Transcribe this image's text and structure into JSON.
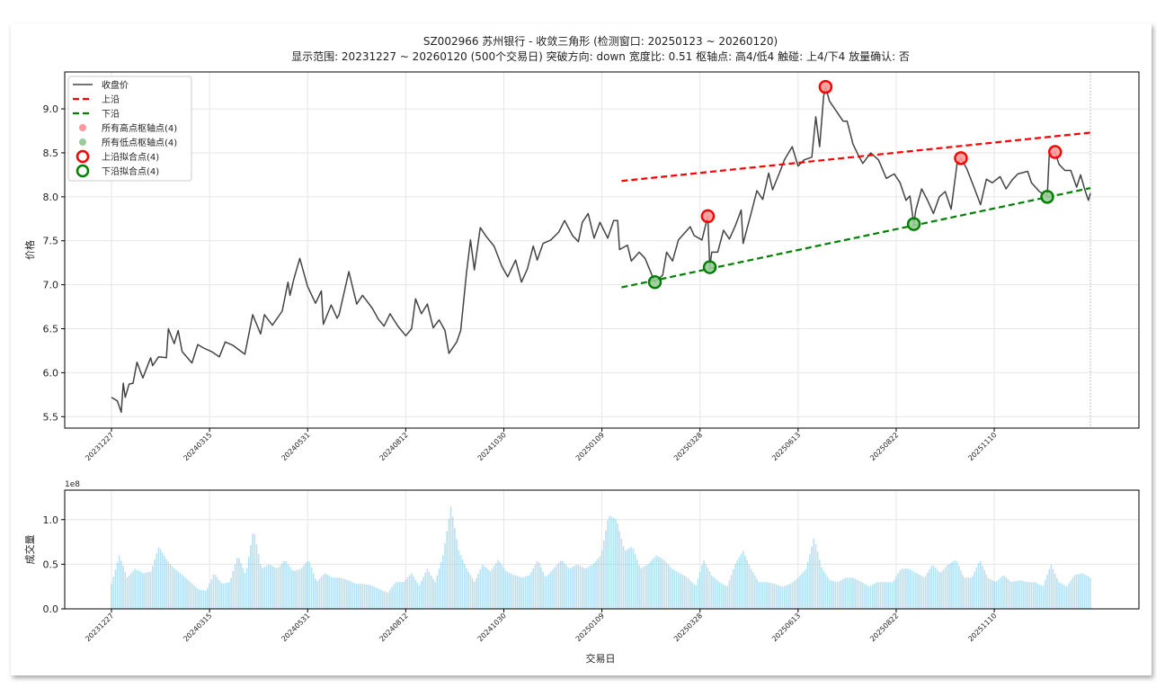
{
  "figure": {
    "title_line1": "SZ002966 苏州银行 - 收敛三角形 (检测窗口: 20250123 ~ 20260120)",
    "title_line2": "显示范围: 20231227 ~ 20260120 (500个交易日)  突破方向: down  宽度比: 0.51  枢轴点: 高4/低4  触碰: 上4/下4  放量确认: 否"
  },
  "chart_data": [
    {
      "type": "line",
      "ylabel": "价格",
      "xlabel": "",
      "ylim": [
        5.37,
        9.42
      ],
      "yticks": [
        "5.5",
        "6.0",
        "6.5",
        "7.0",
        "7.5",
        "8.0",
        "8.5",
        "9.0"
      ],
      "xtick_labels": [
        "20231227",
        "20240315",
        "20240531",
        "20240812",
        "20241030",
        "20250109",
        "20250328",
        "20250613",
        "20250822",
        "20251110"
      ],
      "trading_days": 500,
      "grid": true,
      "legend_position": "upper-left",
      "legend": [
        "收盘价",
        "上沿",
        "下沿",
        "所有高点枢轴点(4)",
        "所有低点枢轴点(4)",
        "上沿拟合点(4)",
        "下沿拟合点(4)"
      ],
      "colors": {
        "close": "#444444",
        "upper": "#ff0000",
        "lower": "#008000",
        "high_pivot": "#ff9999",
        "low_pivot": "#99cc99"
      },
      "close_points": [
        [
          0,
          5.72
        ],
        [
          3,
          5.68
        ],
        [
          5,
          5.55
        ],
        [
          6,
          5.88
        ],
        [
          7,
          5.72
        ],
        [
          9,
          5.87
        ],
        [
          11,
          5.88
        ],
        [
          13,
          6.12
        ],
        [
          16,
          5.94
        ],
        [
          20,
          6.17
        ],
        [
          21,
          6.08
        ],
        [
          24,
          6.18
        ],
        [
          28,
          6.17
        ],
        [
          29,
          6.5
        ],
        [
          32,
          6.33
        ],
        [
          34,
          6.48
        ],
        [
          36,
          6.24
        ],
        [
          41,
          6.11
        ],
        [
          44,
          6.32
        ],
        [
          47,
          6.28
        ],
        [
          51,
          6.24
        ],
        [
          55,
          6.18
        ],
        [
          58,
          6.35
        ],
        [
          62,
          6.31
        ],
        [
          68,
          6.21
        ],
        [
          72,
          6.66
        ],
        [
          76,
          6.44
        ],
        [
          78,
          6.66
        ],
        [
          82,
          6.54
        ],
        [
          87,
          6.7
        ],
        [
          90,
          7.03
        ],
        [
          91,
          6.88
        ],
        [
          93,
          7.07
        ],
        [
          96,
          7.3
        ],
        [
          100,
          6.98
        ],
        [
          104,
          6.79
        ],
        [
          107,
          6.93
        ],
        [
          108,
          6.55
        ],
        [
          112,
          6.77
        ],
        [
          115,
          6.62
        ],
        [
          116,
          6.66
        ],
        [
          121,
          7.15
        ],
        [
          125,
          6.78
        ],
        [
          128,
          6.88
        ],
        [
          130,
          6.82
        ],
        [
          133,
          6.73
        ],
        [
          136,
          6.61
        ],
        [
          139,
          6.53
        ],
        [
          142,
          6.67
        ],
        [
          146,
          6.53
        ],
        [
          150,
          6.42
        ],
        [
          153,
          6.5
        ],
        [
          155,
          6.84
        ],
        [
          158,
          6.67
        ],
        [
          161,
          6.78
        ],
        [
          164,
          6.51
        ],
        [
          167,
          6.6
        ],
        [
          170,
          6.48
        ],
        [
          172,
          6.22
        ],
        [
          176,
          6.35
        ],
        [
          178,
          6.48
        ],
        [
          181,
          7.14
        ],
        [
          183,
          7.51
        ],
        [
          185,
          7.17
        ],
        [
          188,
          7.65
        ],
        [
          191,
          7.55
        ],
        [
          195,
          7.44
        ],
        [
          199,
          7.21
        ],
        [
          202,
          7.09
        ],
        [
          206,
          7.28
        ],
        [
          209,
          7.03
        ],
        [
          212,
          7.18
        ],
        [
          215,
          7.44
        ],
        [
          217,
          7.28
        ],
        [
          220,
          7.47
        ],
        [
          224,
          7.51
        ],
        [
          228,
          7.6
        ],
        [
          231,
          7.73
        ],
        [
          235,
          7.56
        ],
        [
          238,
          7.49
        ],
        [
          240,
          7.71
        ],
        [
          243,
          7.81
        ],
        [
          246,
          7.53
        ],
        [
          249,
          7.71
        ],
        [
          253,
          7.53
        ],
        [
          256,
          7.73
        ],
        [
          258,
          7.73
        ],
        [
          259,
          7.4
        ],
        [
          263,
          7.45
        ],
        [
          265,
          7.27
        ],
        [
          269,
          7.37
        ],
        [
          272,
          7.3
        ],
        [
          277,
          7.03
        ],
        [
          281,
          7.11
        ],
        [
          283,
          7.37
        ],
        [
          286,
          7.27
        ],
        [
          289,
          7.51
        ],
        [
          295,
          7.66
        ],
        [
          297,
          7.56
        ],
        [
          301,
          7.51
        ],
        [
          304,
          7.78
        ],
        [
          305,
          7.2
        ],
        [
          306,
          7.37
        ],
        [
          309,
          7.37
        ],
        [
          312,
          7.62
        ],
        [
          315,
          7.52
        ],
        [
          318,
          7.67
        ],
        [
          321,
          7.85
        ],
        [
          322,
          7.47
        ],
        [
          326,
          7.81
        ],
        [
          329,
          8.07
        ],
        [
          332,
          7.97
        ],
        [
          335,
          8.27
        ],
        [
          337,
          8.08
        ],
        [
          341,
          8.3
        ],
        [
          343,
          8.42
        ],
        [
          347,
          8.57
        ],
        [
          350,
          8.35
        ],
        [
          353,
          8.42
        ],
        [
          357,
          8.45
        ],
        [
          359,
          8.91
        ],
        [
          361,
          8.57
        ],
        [
          363,
          9.14
        ],
        [
          364,
          9.25
        ],
        [
          366,
          9.09
        ],
        [
          369,
          8.99
        ],
        [
          373,
          8.86
        ],
        [
          375,
          8.86
        ],
        [
          378,
          8.6
        ],
        [
          381,
          8.46
        ],
        [
          383,
          8.38
        ],
        [
          387,
          8.5
        ],
        [
          391,
          8.42
        ],
        [
          395,
          8.21
        ],
        [
          399,
          8.26
        ],
        [
          402,
          8.16
        ],
        [
          405,
          7.96
        ],
        [
          407,
          8.01
        ],
        [
          409,
          7.69
        ],
        [
          410,
          7.85
        ],
        [
          413,
          8.09
        ],
        [
          416,
          7.96
        ],
        [
          419,
          7.81
        ],
        [
          422,
          8.0
        ],
        [
          425,
          8.06
        ],
        [
          428,
          7.86
        ],
        [
          431,
          8.37
        ],
        [
          433,
          8.44
        ],
        [
          436,
          8.32
        ],
        [
          440,
          8.09
        ],
        [
          443,
          7.91
        ],
        [
          446,
          8.2
        ],
        [
          449,
          8.16
        ],
        [
          453,
          8.23
        ],
        [
          456,
          8.09
        ],
        [
          459,
          8.19
        ],
        [
          462,
          8.26
        ],
        [
          467,
          8.29
        ],
        [
          469,
          8.16
        ],
        [
          473,
          8.06
        ],
        [
          477,
          8.0
        ],
        [
          478,
          8.47
        ],
        [
          481,
          8.51
        ],
        [
          483,
          8.37
        ],
        [
          486,
          8.3
        ],
        [
          489,
          8.3
        ],
        [
          492,
          8.11
        ],
        [
          494,
          8.25
        ],
        [
          496,
          8.09
        ],
        [
          498,
          7.96
        ],
        [
          499,
          8.04
        ]
      ],
      "upper_line": [
        [
          260,
          8.18
        ],
        [
          499,
          8.73
        ]
      ],
      "lower_line": [
        [
          260,
          6.97
        ],
        [
          499,
          8.1
        ]
      ],
      "high_pivots": [
        [
          304,
          7.78
        ],
        [
          364,
          9.25
        ],
        [
          433,
          8.44
        ],
        [
          481,
          8.51
        ]
      ],
      "low_pivots": [
        [
          277,
          7.03
        ],
        [
          305,
          7.2
        ],
        [
          409,
          7.69
        ],
        [
          477,
          8.0
        ]
      ],
      "upper_fit_points": [
        [
          304,
          7.78
        ],
        [
          364,
          9.25
        ],
        [
          433,
          8.44
        ],
        [
          481,
          8.51
        ]
      ],
      "lower_fit_points": [
        [
          277,
          7.03
        ],
        [
          305,
          7.2
        ],
        [
          409,
          7.69
        ],
        [
          477,
          8.0
        ]
      ]
    },
    {
      "type": "bar",
      "ylabel": "成交量",
      "xlabel": "交易日",
      "offset_label": "1e8",
      "ylim": [
        0,
        1.33
      ],
      "yticks": [
        "0.0",
        "0.5",
        "1.0"
      ],
      "xtick_labels": [
        "20231227",
        "20240315",
        "20240531",
        "20240812",
        "20241030",
        "20250109",
        "20250328",
        "20250613",
        "20250822",
        "20251110"
      ],
      "grid": true,
      "color": "#87ceeb",
      "values": [
        0.28,
        0.6,
        0.35,
        0.45,
        0.4,
        0.42,
        0.7,
        0.55,
        0.45,
        0.38,
        0.3,
        0.22,
        0.2,
        0.4,
        0.28,
        0.3,
        0.6,
        0.38,
        0.9,
        0.45,
        0.5,
        0.45,
        0.55,
        0.42,
        0.45,
        0.55,
        0.3,
        0.4,
        0.35,
        0.35,
        0.32,
        0.28,
        0.28,
        0.26,
        0.22,
        0.18,
        0.3,
        0.3,
        0.4,
        0.26,
        0.45,
        0.3,
        0.6,
        1.15,
        0.65,
        0.45,
        0.3,
        0.5,
        0.42,
        0.55,
        0.42,
        0.38,
        0.35,
        0.38,
        0.55,
        0.35,
        0.45,
        0.55,
        0.45,
        0.5,
        0.45,
        0.5,
        0.6,
        1.05,
        1.0,
        0.65,
        0.7,
        0.45,
        0.5,
        0.6,
        0.55,
        0.45,
        0.4,
        0.35,
        0.25,
        0.55,
        0.38,
        0.3,
        0.25,
        0.5,
        0.65,
        0.45,
        0.3,
        0.3,
        0.28,
        0.25,
        0.28,
        0.35,
        0.45,
        0.8,
        0.45,
        0.32,
        0.3,
        0.35,
        0.35,
        0.3,
        0.25,
        0.3,
        0.3,
        0.3,
        0.45,
        0.45,
        0.4,
        0.35,
        0.5,
        0.4,
        0.5,
        0.55,
        0.35,
        0.35,
        0.55,
        0.35,
        0.3,
        0.38,
        0.3,
        0.32,
        0.3,
        0.3,
        0.25,
        0.5,
        0.3,
        0.25,
        0.38,
        0.4,
        0.35
      ]
    }
  ]
}
